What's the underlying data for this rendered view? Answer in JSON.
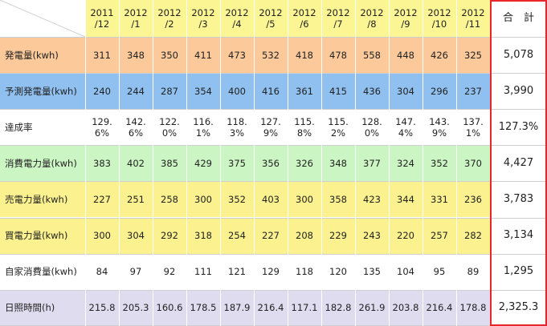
{
  "chart_data": {
    "type": "table",
    "header": {
      "months": [
        "2011\n/12",
        "2012\n/1",
        "2012\n/2",
        "2012\n/3",
        "2012\n/4",
        "2012\n/5",
        "2012\n/6",
        "2012\n/7",
        "2012\n/8",
        "2012\n/9",
        "2012\n/10",
        "2012\n/11"
      ],
      "total": "合　計"
    },
    "rows": [
      {
        "label": "発電量(kwh)",
        "values": [
          "311",
          "348",
          "350",
          "411",
          "473",
          "532",
          "418",
          "478",
          "558",
          "448",
          "426",
          "325"
        ],
        "total": "5,078",
        "color": "#fbc99a"
      },
      {
        "label": "予測発電量(kwh)",
        "values": [
          "240",
          "244",
          "287",
          "354",
          "400",
          "416",
          "361",
          "415",
          "436",
          "304",
          "296",
          "237"
        ],
        "total": "3,990",
        "color": "#8fc0f0"
      },
      {
        "label": "達成率",
        "values": [
          "129.\n6%",
          "142.\n6%",
          "122.\n0%",
          "116.\n1%",
          "118.\n3%",
          "127.\n9%",
          "115.\n8%",
          "115.\n2%",
          "128.\n0%",
          "147.\n4%",
          "143.\n9%",
          "137.\n1%"
        ],
        "total": "127.3%",
        "color": "#ffffff"
      },
      {
        "label": "消費電力量(kwh)",
        "values": [
          "383",
          "402",
          "385",
          "429",
          "375",
          "356",
          "326",
          "348",
          "377",
          "324",
          "352",
          "370"
        ],
        "total": "4,427",
        "color": "#ccf5c4"
      },
      {
        "label": "売電力量(kwh)",
        "values": [
          "227",
          "251",
          "258",
          "300",
          "352",
          "403",
          "300",
          "358",
          "423",
          "344",
          "331",
          "236"
        ],
        "total": "3,783",
        "color": "#fbf28f"
      },
      {
        "label": "買電力量(kwh)",
        "values": [
          "300",
          "304",
          "292",
          "318",
          "254",
          "227",
          "208",
          "229",
          "243",
          "220",
          "257",
          "282"
        ],
        "total": "3,134",
        "color": "#fbf28f"
      },
      {
        "label": "自家消費量(kwh)",
        "values": [
          "84",
          "97",
          "92",
          "111",
          "121",
          "129",
          "118",
          "120",
          "135",
          "104",
          "95",
          "89"
        ],
        "total": "1,295",
        "color": "#ffffff"
      },
      {
        "label": "日照時間(h)",
        "values": [
          "215.8",
          "205.3",
          "160.6",
          "178.5",
          "187.9",
          "216.4",
          "117.1",
          "182.8",
          "261.9",
          "203.8",
          "216.4",
          "178.8"
        ],
        "total": "2,325.3",
        "color": "#e0dcef"
      }
    ],
    "colors": {
      "header": "#fbf594",
      "total_border": "#e8262a",
      "total_bg": "#ffffff"
    }
  }
}
